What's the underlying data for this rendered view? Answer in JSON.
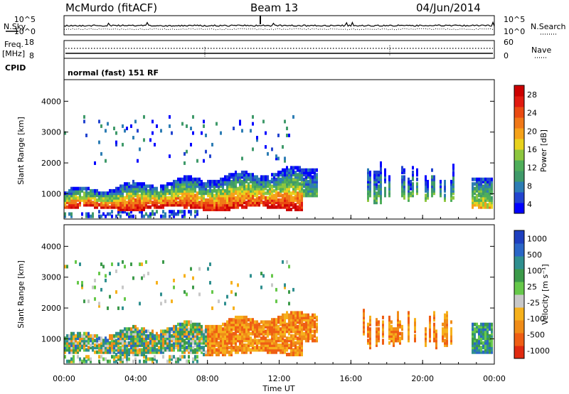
{
  "header": {
    "station": "McMurdo (fitACF)",
    "beam": "Beam 13",
    "date": "04/Jun/2014"
  },
  "panels": {
    "nsky_label": "N.Sky",
    "nsearch_label": "N.Search",
    "freq_label": "Freq.",
    "freq_unit": "[MHz]",
    "nave_label": "Nave",
    "cpid_label": "CPID",
    "cpid_text": "normal (fast) 151 RF",
    "nsky_ticks": [
      "10^5",
      "10^0"
    ],
    "nsearch_ticks": [
      "10^5",
      "10^0"
    ],
    "freq_ticks": [
      "18",
      "8"
    ],
    "nave_ticks": [
      "60",
      "0"
    ]
  },
  "chart_data": [
    {
      "type": "heatmap",
      "title": "",
      "xlabel": "Time UT",
      "ylabel": "Slant Range [km]",
      "x_ticks": [
        "00:00",
        "04:00",
        "08:00",
        "12:00",
        "16:00",
        "20:00",
        "00:00"
      ],
      "y_ticks": [
        1000,
        2000,
        3000,
        4000
      ],
      "xlim": [
        0,
        24
      ],
      "ylim": [
        180,
        4700
      ],
      "colorbar": {
        "label": "Power [dB]",
        "ticks": [
          "4",
          "8",
          "12",
          "16",
          "20",
          "24",
          "28"
        ],
        "colors": [
          "#0000ff",
          "#2244d0",
          "#2d7db4",
          "#3f9a6a",
          "#4fae5a",
          "#8dc63f",
          "#e8d21d",
          "#f5a21a",
          "#f07818",
          "#ea4a12",
          "#e11a10",
          "#cc0000"
        ]
      },
      "regions": [
        {
          "t0": 0.3,
          "t1": 13.2,
          "r0": 500,
          "r1": 1800,
          "level": "high"
        },
        {
          "t0": 16.8,
          "t1": 21.8,
          "r0": 600,
          "r1": 2050,
          "level": "medium"
        },
        {
          "t0": 22.8,
          "t1": 24,
          "r0": 600,
          "r1": 1500,
          "level": "high"
        },
        {
          "t0": 0.5,
          "t1": 13,
          "r0": 2000,
          "r1": 3500,
          "level": "low"
        }
      ]
    },
    {
      "type": "heatmap",
      "title": "",
      "xlabel": "Time UT",
      "ylabel": "Slant Range [km]",
      "x_ticks": [
        "00:00",
        "04:00",
        "08:00",
        "12:00",
        "16:00",
        "20:00",
        "00:00"
      ],
      "y_ticks": [
        1000,
        2000,
        3000,
        4000
      ],
      "xlim": [
        0,
        24
      ],
      "ylim": [
        180,
        4700
      ],
      "colorbar": {
        "label": "Velocity [m s⁻¹]",
        "ticks": [
          "1000",
          "500",
          "100",
          "25",
          "-25",
          "-100",
          "-500",
          "-1000"
        ],
        "colors": [
          "#1e3fbf",
          "#2a66c7",
          "#2f8f8f",
          "#3c9a4a",
          "#66c84a",
          "#c8c8c8",
          "#f6b11c",
          "#f08c18",
          "#ef5e14",
          "#e02a10"
        ]
      },
      "regions": [
        {
          "t0": 0.3,
          "t1": 8,
          "r0": 500,
          "r1": 1700,
          "level": "mixed"
        },
        {
          "t0": 8,
          "t1": 14,
          "r0": 700,
          "r1": 1850,
          "level": "negative"
        },
        {
          "t0": 16.8,
          "t1": 21.8,
          "r0": 600,
          "r1": 2000,
          "level": "negative"
        },
        {
          "t0": 22.8,
          "t1": 24,
          "r0": 600,
          "r1": 1500,
          "level": "positive"
        }
      ]
    }
  ]
}
